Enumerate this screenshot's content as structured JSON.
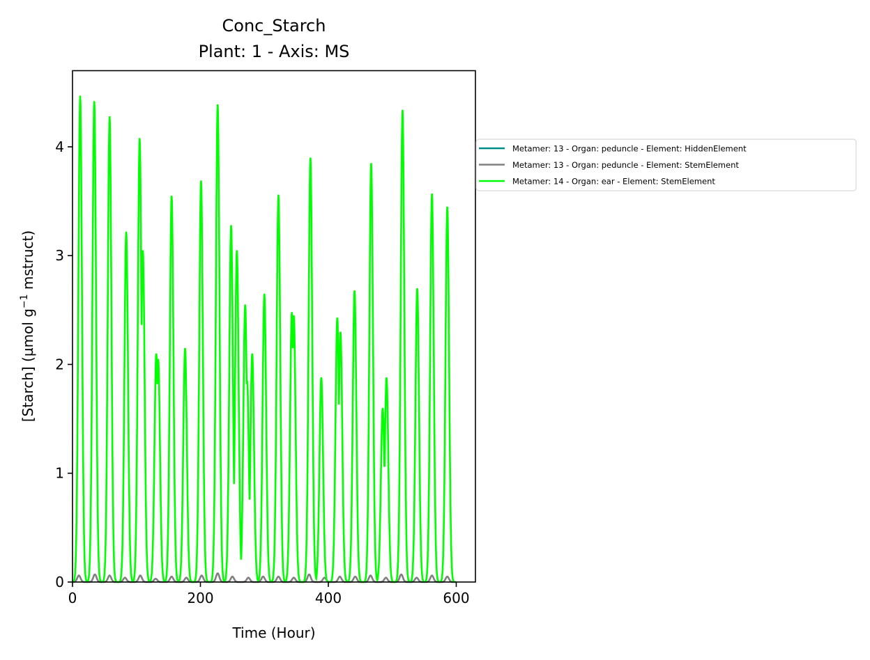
{
  "chart_data": {
    "type": "line",
    "title": "Conc_Starch",
    "subtitle": "Plant: 1 - Axis: MS",
    "xlabel": "Time (Hour)",
    "ylabel_parts": [
      "[Starch] (µmol g",
      "−1",
      " mstruct)"
    ],
    "xlim": [
      0,
      630
    ],
    "ylim": [
      0,
      4.7
    ],
    "x_ticks": [
      0,
      200,
      400,
      600
    ],
    "y_ticks": [
      0,
      1,
      2,
      3,
      4
    ],
    "grid": false,
    "legend_position": "outside right",
    "series": [
      {
        "name": "Metamer: 13 - Organ: peduncle - Element: HiddenElement",
        "color": "#008B8B",
        "peaks": []
      },
      {
        "name": "Metamer: 13 - Organ: peduncle - Element: StemElement",
        "color": "#808080",
        "peaks": [
          [
            10,
            0.06
          ],
          [
            35,
            0.07
          ],
          [
            58,
            0.06
          ],
          [
            82,
            0.04
          ],
          [
            106,
            0.06
          ],
          [
            130,
            0.03
          ],
          [
            155,
            0.05
          ],
          [
            178,
            0.04
          ],
          [
            202,
            0.06
          ],
          [
            227,
            0.08
          ],
          [
            250,
            0.05
          ],
          [
            275,
            0.04
          ],
          [
            298,
            0.05
          ],
          [
            322,
            0.05
          ],
          [
            346,
            0.04
          ],
          [
            370,
            0.07
          ],
          [
            394,
            0.04
          ],
          [
            418,
            0.05
          ],
          [
            442,
            0.05
          ],
          [
            466,
            0.06
          ],
          [
            490,
            0.04
          ],
          [
            514,
            0.07
          ],
          [
            538,
            0.04
          ],
          [
            562,
            0.06
          ],
          [
            586,
            0.05
          ]
        ]
      },
      {
        "name": "Metamer: 14 - Organ: ear - Element: StemElement",
        "color": "#00FF00",
        "peaks": [
          [
            12,
            4.47
          ],
          [
            34,
            4.42
          ],
          [
            58,
            4.28
          ],
          [
            84,
            3.22
          ],
          [
            105,
            4.08
          ],
          [
            110,
            3.05
          ],
          [
            131,
            2.1
          ],
          [
            134,
            2.05
          ],
          [
            155,
            3.55
          ],
          [
            176,
            2.15
          ],
          [
            201,
            3.69
          ],
          [
            227,
            4.39
          ],
          [
            248,
            3.28
          ],
          [
            257,
            3.05
          ],
          [
            270,
            2.55
          ],
          [
            273,
            1.85
          ],
          [
            281,
            2.1
          ],
          [
            300,
            2.65
          ],
          [
            322,
            3.56
          ],
          [
            343,
            2.48
          ],
          [
            346,
            2.45
          ],
          [
            372,
            3.9
          ],
          [
            389,
            1.88
          ],
          [
            414,
            2.43
          ],
          [
            419,
            2.3
          ],
          [
            441,
            2.68
          ],
          [
            467,
            3.85
          ],
          [
            485,
            1.6
          ],
          [
            491,
            1.88
          ],
          [
            516,
            4.34
          ],
          [
            539,
            2.7
          ],
          [
            562,
            3.57
          ],
          [
            586,
            3.45
          ]
        ]
      }
    ]
  }
}
